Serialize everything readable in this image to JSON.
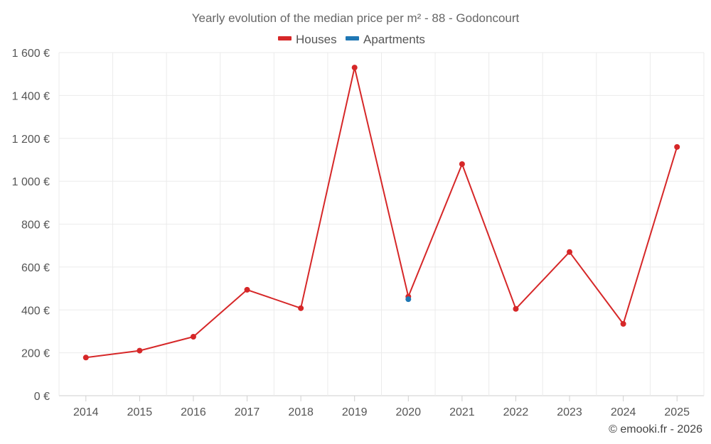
{
  "chart_data": {
    "type": "line",
    "title": "Yearly evolution of the median price per m² - 88 - Godoncourt",
    "categories": [
      "2014",
      "2015",
      "2016",
      "2017",
      "2018",
      "2019",
      "2020",
      "2021",
      "2022",
      "2023",
      "2024",
      "2025"
    ],
    "ylim": [
      0,
      1600
    ],
    "yticks": [
      0,
      200,
      400,
      600,
      800,
      1000,
      1200,
      1400,
      1600
    ],
    "ytick_labels": [
      "0 €",
      "200 €",
      "400 €",
      "600 €",
      "800 €",
      "1 000 €",
      "1 200 €",
      "1 400 €",
      "1 600 €"
    ],
    "grid": true,
    "legend_position": "top-center",
    "series": [
      {
        "name": "Houses",
        "color": "#d62728",
        "values": [
          178,
          210,
          275,
          494,
          408,
          1530,
          462,
          1080,
          405,
          670,
          335,
          1160
        ]
      },
      {
        "name": "Apartments",
        "color": "#1f77b4",
        "values": [
          null,
          null,
          null,
          null,
          null,
          null,
          450,
          null,
          null,
          null,
          null,
          null
        ]
      }
    ]
  },
  "credit": "© emooki.fr - 2026"
}
